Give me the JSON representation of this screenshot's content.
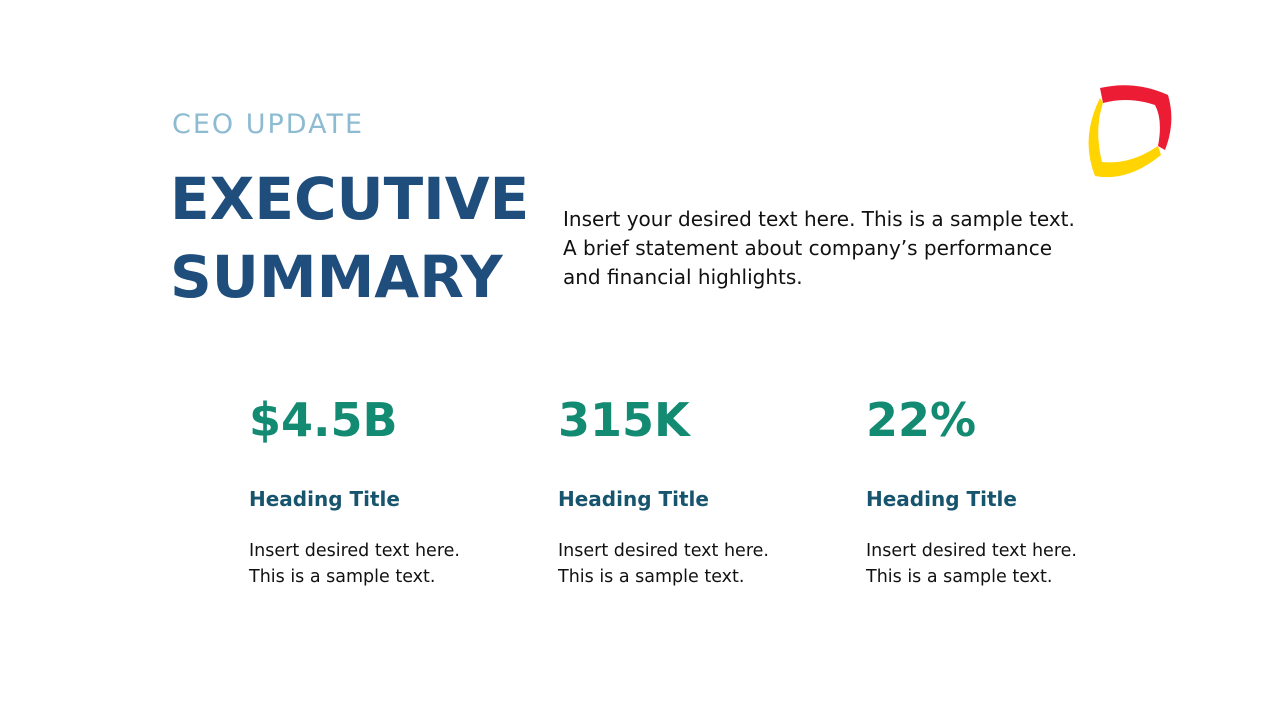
{
  "header": {
    "kicker": "CEO UPDATE",
    "title": [
      "EXECUTIVE",
      "SUMMARY"
    ],
    "intro": [
      "Insert your desired text here. This is a sample text.",
      "A brief statement about company’s performance",
      "and financial highlights."
    ]
  },
  "metrics": [
    {
      "value": "$4.5B",
      "heading": "Heading Title",
      "text": [
        "Insert desired text here.",
        "This is a sample text."
      ]
    },
    {
      "value": "315K",
      "heading": "Heading Title",
      "text": [
        "Insert desired text here.",
        "This is a sample text."
      ]
    },
    {
      "value": "22%",
      "heading": "Heading Title",
      "text": [
        "Insert desired text here.",
        "This is a sample text."
      ]
    }
  ]
}
